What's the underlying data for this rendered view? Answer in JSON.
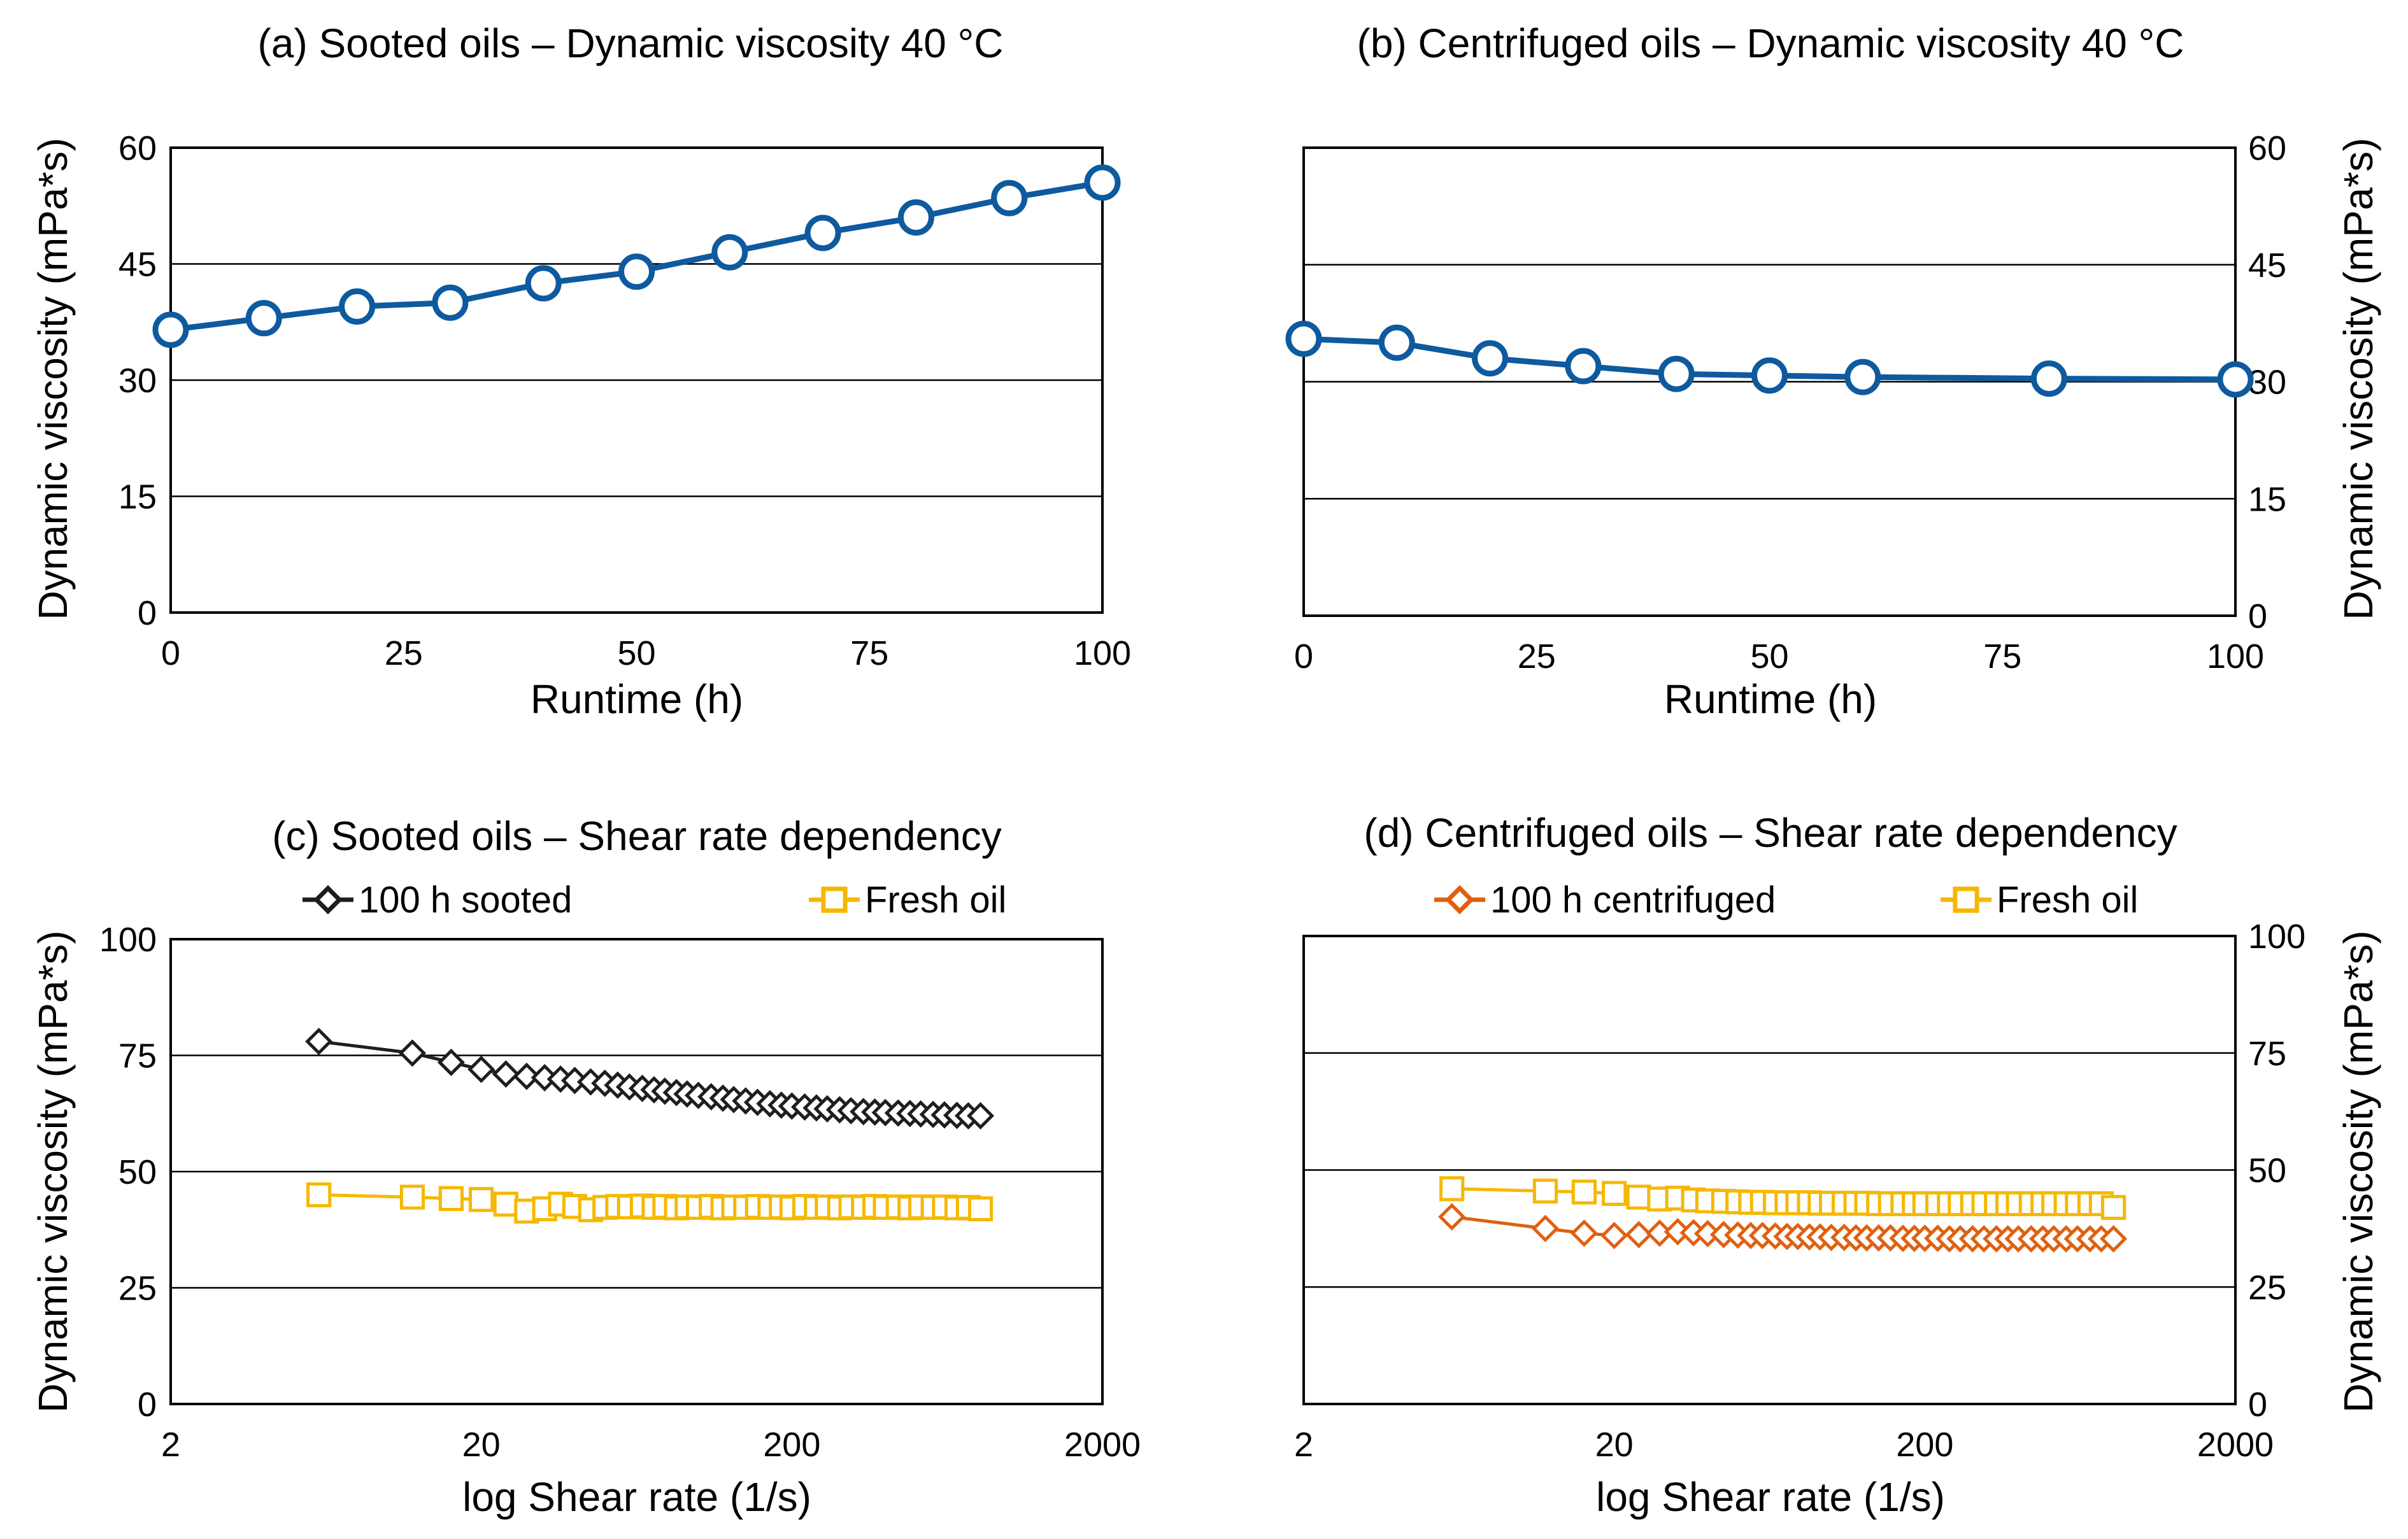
{
  "chart_data": [
    {
      "id": "a",
      "type": "line",
      "title": "(a) Sooted oils – Dynamic viscosity 40 °C",
      "xlabel": "Runtime (h)",
      "ylabel": "Dynamic viscosity (mPa*s)",
      "xscale": "linear",
      "xlim": [
        0,
        100
      ],
      "ylim": [
        0,
        60
      ],
      "xticks": [
        0,
        25,
        50,
        75,
        100
      ],
      "yticks": [
        0,
        15,
        30,
        45,
        60
      ],
      "ylabel_side": "left",
      "grid": "horizontal",
      "legend": [],
      "series": [
        {
          "name": "Sooted oil",
          "color": "#0e5a9e",
          "marker": "circle",
          "x": [
            0,
            10,
            20,
            30,
            40,
            50,
            60,
            70,
            80,
            90,
            100
          ],
          "values": [
            36.5,
            38,
            39.5,
            40,
            42.5,
            44,
            46.5,
            49,
            51,
            53.5,
            55.5
          ]
        }
      ]
    },
    {
      "id": "b",
      "type": "line",
      "title": "(b) Centrifuged oils  – Dynamic viscosity 40 °C",
      "xlabel": "Runtime (h)",
      "ylabel": "Dynamic viscosity (mPa*s)",
      "xscale": "linear",
      "xlim": [
        0,
        100
      ],
      "ylim": [
        0,
        60
      ],
      "xticks": [
        0,
        25,
        50,
        75,
        100
      ],
      "yticks": [
        0,
        15,
        30,
        45,
        60
      ],
      "ylabel_side": "right",
      "grid": "horizontal",
      "legend": [],
      "series": [
        {
          "name": "Centrifuged oil",
          "color": "#0e5a9e",
          "marker": "circle",
          "x": [
            0,
            10,
            20,
            30,
            40,
            50,
            60,
            80,
            100
          ],
          "values": [
            35.5,
            35,
            33,
            32,
            31,
            30.8,
            30.6,
            30.4,
            30.3
          ]
        }
      ]
    },
    {
      "id": "c",
      "type": "line",
      "title": "(c) Sooted oils – Shear rate dependency",
      "xlabel": "log Shear rate (1/s)",
      "ylabel": "Dynamic viscosity (mPa*s)",
      "xscale": "log",
      "xlim": [
        2,
        2000
      ],
      "ylim": [
        0,
        100
      ],
      "xticks": [
        2,
        20,
        200,
        2000
      ],
      "yticks": [
        0,
        25,
        50,
        75,
        100
      ],
      "ylabel_side": "left",
      "grid": "horizontal",
      "legend": [
        "100 h sooted",
        "Fresh oil"
      ],
      "series": [
        {
          "name": "100 h sooted",
          "color": "#1e1e1e",
          "marker": "diamond",
          "x": [
            6,
            12,
            16,
            20,
            24,
            28,
            32,
            36,
            40,
            45,
            50,
            55,
            60,
            66,
            72,
            78,
            85,
            92,
            100,
            110,
            120,
            130,
            142,
            155,
            170,
            185,
            200,
            220,
            240,
            260,
            285,
            310,
            340,
            370,
            400,
            440,
            480,
            520,
            570,
            620,
            680,
            740,
            810
          ],
          "values": [
            78,
            75.5,
            73.5,
            72,
            71,
            70.5,
            70.2,
            69.9,
            69.6,
            69.3,
            69,
            68.6,
            68.2,
            67.9,
            67.6,
            67.3,
            67,
            66.7,
            66.4,
            66.1,
            65.8,
            65.5,
            65.2,
            64.9,
            64.6,
            64.3,
            64.1,
            63.9,
            63.7,
            63.5,
            63.3,
            63.1,
            62.9,
            62.8,
            62.7,
            62.6,
            62.5,
            62.4,
            62.3,
            62.2,
            62.1,
            62.0,
            62
          ]
        },
        {
          "name": "Fresh oil",
          "color": "#f5b800",
          "marker": "square",
          "x": [
            6,
            12,
            16,
            20,
            24,
            28,
            32,
            36,
            40,
            45,
            50,
            55,
            60,
            66,
            72,
            78,
            85,
            92,
            100,
            110,
            120,
            130,
            142,
            155,
            170,
            185,
            200,
            220,
            240,
            260,
            285,
            310,
            340,
            370,
            400,
            440,
            480,
            520,
            570,
            620,
            680,
            740,
            810
          ],
          "values": [
            45,
            44.5,
            44.2,
            44,
            43,
            41.5,
            42,
            43,
            42.5,
            41.8,
            42.3,
            42.5,
            42.4,
            42.6,
            42.3,
            42.5,
            42.2,
            42.4,
            42.3,
            42.5,
            42.2,
            42.4,
            42.3,
            42.5,
            42.3,
            42.4,
            42.2,
            42.5,
            42.3,
            42.4,
            42.2,
            42.4,
            42.3,
            42.5,
            42.3,
            42.4,
            42.2,
            42.4,
            42.3,
            42.4,
            42.2,
            42.3,
            42
          ]
        }
      ]
    },
    {
      "id": "d",
      "type": "line",
      "title": "(d) Centrifuged oils – Shear rate dependency",
      "xlabel": "log Shear rate (1/s)",
      "ylabel": "Dynamic viscosity (mPa*s)",
      "xscale": "log",
      "xlim": [
        2,
        2000
      ],
      "ylim": [
        0,
        100
      ],
      "xticks": [
        2,
        20,
        200,
        2000
      ],
      "yticks": [
        0,
        25,
        50,
        75,
        100
      ],
      "ylabel_side": "right",
      "grid": "horizontal",
      "legend": [
        "100 h centrifuged",
        "Fresh oil"
      ],
      "series": [
        {
          "name": "100 h centrifuged",
          "color": "#e06010",
          "marker": "diamond",
          "x": [
            6,
            12,
            16,
            20,
            24,
            28,
            32,
            36,
            40,
            45,
            50,
            55,
            60,
            66,
            72,
            78,
            85,
            92,
            100,
            110,
            120,
            130,
            142,
            155,
            170,
            185,
            200,
            220,
            240,
            260,
            285,
            310,
            340,
            370,
            400,
            440,
            480,
            520,
            570,
            620,
            680,
            740,
            810
          ],
          "values": [
            40,
            37.5,
            36.5,
            36,
            36.2,
            36.5,
            36.8,
            36.6,
            36.4,
            36.2,
            36.1,
            36,
            36,
            35.9,
            35.8,
            35.8,
            35.7,
            35.7,
            35.6,
            35.6,
            35.5,
            35.5,
            35.5,
            35.5,
            35.4,
            35.4,
            35.4,
            35.4,
            35.3,
            35.3,
            35.3,
            35.3,
            35.3,
            35.3,
            35.3,
            35.3,
            35.3,
            35.3,
            35.3,
            35.3,
            35.3,
            35.3,
            35.3
          ]
        },
        {
          "name": "Fresh oil",
          "color": "#f5b800",
          "marker": "square",
          "x": [
            6,
            12,
            16,
            20,
            24,
            28,
            32,
            36,
            40,
            45,
            50,
            55,
            60,
            66,
            72,
            78,
            85,
            92,
            100,
            110,
            120,
            130,
            142,
            155,
            170,
            185,
            200,
            220,
            240,
            260,
            285,
            310,
            340,
            370,
            400,
            440,
            480,
            520,
            570,
            620,
            680,
            740,
            810
          ],
          "values": [
            46,
            45.5,
            45.3,
            45,
            44.2,
            43.8,
            44,
            43.6,
            43.4,
            43.3,
            43.2,
            43.1,
            43.1,
            43,
            43,
            43,
            43,
            42.9,
            42.9,
            42.9,
            42.9,
            42.9,
            42.8,
            42.8,
            42.8,
            42.8,
            42.8,
            42.8,
            42.8,
            42.8,
            42.8,
            42.8,
            42.8,
            42.8,
            42.8,
            42.8,
            42.8,
            42.8,
            42.8,
            42.8,
            42.8,
            42.8,
            42
          ]
        }
      ]
    }
  ]
}
